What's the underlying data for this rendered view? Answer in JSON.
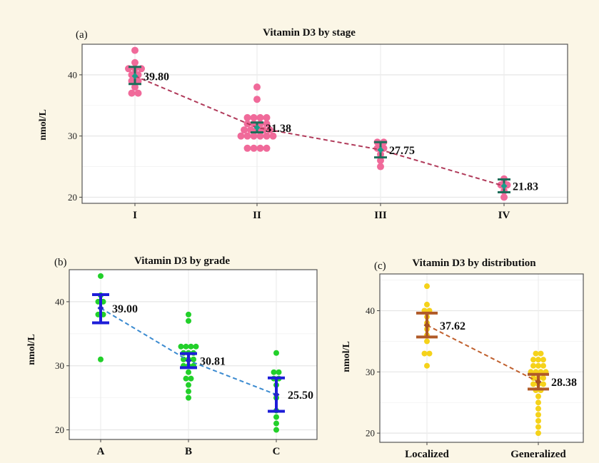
{
  "chart_data": [
    {
      "panel": "(a)",
      "type": "scatter",
      "title": "Vitamin D3 by stage",
      "ylabel": "nmol/L",
      "xlabel": "",
      "categories": [
        "I",
        "II",
        "III",
        "IV"
      ],
      "ylim": [
        19,
        45
      ],
      "yticks": [
        20,
        30,
        40
      ],
      "means": [
        39.8,
        31.38,
        27.75,
        21.83
      ],
      "mean_labels": [
        "39.80",
        "31.38",
        "27.75",
        "21.83"
      ],
      "ci": [
        [
          38.5,
          41.3
        ],
        [
          30.6,
          32.2
        ],
        [
          26.5,
          29.0
        ],
        [
          20.8,
          22.9
        ]
      ],
      "points": [
        [
          44,
          42,
          41,
          41,
          41,
          40,
          40,
          39,
          39,
          38,
          37,
          37
        ],
        [
          38,
          36,
          33,
          33,
          33,
          33,
          32,
          32,
          32,
          32,
          31,
          31,
          31,
          31,
          31,
          30,
          30,
          30,
          30,
          30,
          30,
          28,
          28,
          28,
          28
        ],
        [
          29,
          29,
          28,
          28,
          27,
          26,
          25
        ],
        [
          23,
          22,
          22,
          21,
          20
        ]
      ],
      "grid": true,
      "colors": {
        "points": "#f06a9a",
        "errorbar": "#1e6e5a",
        "mean": "#1a9e8a",
        "trend": "#b03a5a"
      }
    },
    {
      "panel": "(b)",
      "type": "scatter",
      "title": "Vitamin D3 by grade",
      "ylabel": "nmol/L",
      "xlabel": "",
      "categories": [
        "A",
        "B",
        "C"
      ],
      "ylim": [
        18.5,
        45
      ],
      "yticks": [
        20,
        30,
        40
      ],
      "means": [
        39.0,
        30.81,
        25.5
      ],
      "mean_labels": [
        "39.00",
        "30.81",
        "25.50"
      ],
      "ci": [
        [
          36.7,
          41.1
        ],
        [
          29.7,
          31.9
        ],
        [
          22.9,
          28.1
        ]
      ],
      "points": [
        [
          44,
          41,
          40,
          40,
          38,
          38,
          31
        ],
        [
          38,
          37,
          33,
          33,
          33,
          33,
          32,
          32,
          32,
          31,
          31,
          31,
          30,
          30,
          30,
          29,
          28,
          28,
          27,
          26,
          25
        ],
        [
          32,
          29,
          29,
          28,
          28,
          27,
          25,
          23,
          22,
          21,
          20
        ]
      ],
      "grid": true,
      "colors": {
        "points": "#22d02a",
        "errorbar": "#1d1dd8",
        "mean": "#2424cc",
        "trend": "#3a8ad0"
      }
    },
    {
      "panel": "(c)",
      "type": "scatter",
      "title": "Vitamin D3 by distribution",
      "ylabel": "nmol/L",
      "xlabel": "",
      "categories": [
        "Localized",
        "Generalized"
      ],
      "ylim": [
        18.5,
        46
      ],
      "yticks": [
        20,
        30,
        40
      ],
      "means": [
        37.62,
        28.38
      ],
      "mean_labels": [
        "37.62",
        "28.38"
      ],
      "ci": [
        [
          35.7,
          39.6
        ],
        [
          27.2,
          29.6
        ]
      ],
      "points": [
        [
          44,
          41,
          40,
          40,
          39,
          38,
          37,
          36,
          35,
          33,
          33,
          31
        ],
        [
          33,
          33,
          32,
          32,
          32,
          31,
          31,
          31,
          30,
          30,
          30,
          30,
          29,
          29,
          29,
          28,
          28,
          28,
          27,
          27,
          26,
          25,
          24,
          23,
          22,
          21,
          20
        ]
      ],
      "grid": true,
      "colors": {
        "points": "#f5d21a",
        "errorbar": "#b05a28",
        "mean": "#a8521e",
        "trend": "#c0602e"
      }
    }
  ]
}
